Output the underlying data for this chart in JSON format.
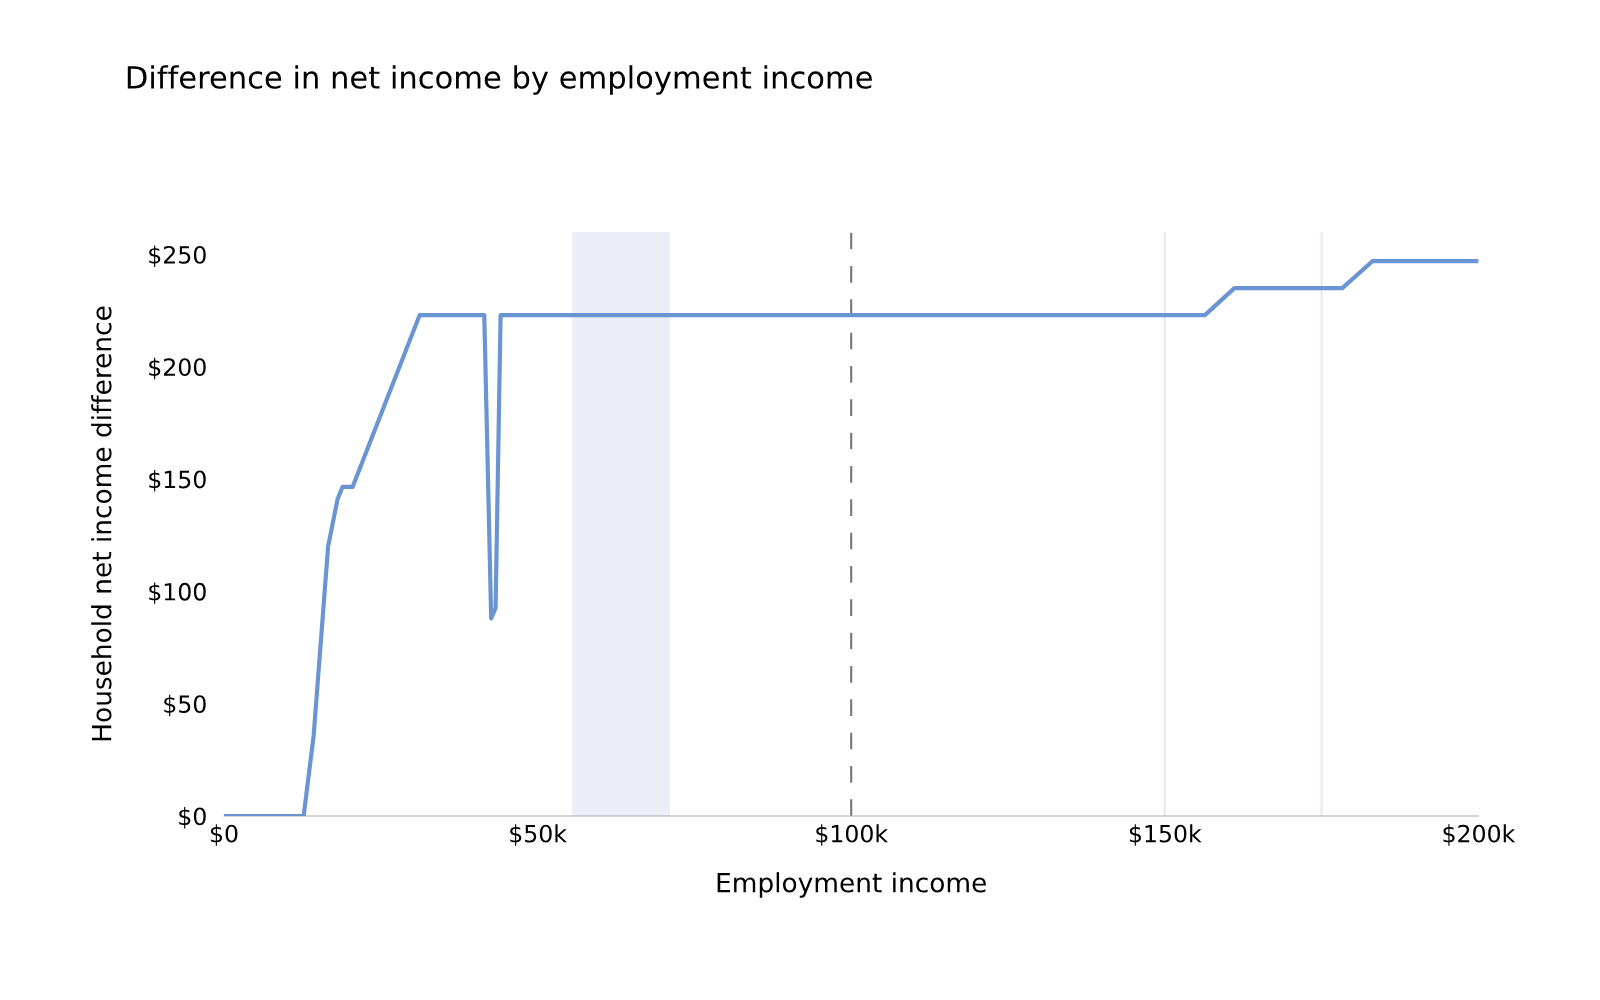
{
  "chart_data": {
    "type": "line",
    "title": "Difference in net income by employment income",
    "xlabel": "Employment income",
    "ylabel": "Household net income difference",
    "x": [
      0,
      12700,
      14300,
      16600,
      18100,
      18900,
      20500,
      31200,
      41500,
      42600,
      43300,
      44100,
      156400,
      161100,
      178300,
      183100,
      200000
    ],
    "series": [
      {
        "color": "#6a95d2",
        "values": [
          0,
          0,
          36,
          120,
          141,
          146.5,
          146.5,
          223,
          223,
          88,
          92.5,
          223,
          223,
          235,
          235,
          247,
          247
        ]
      }
    ],
    "xlim": [
      0,
      200000
    ],
    "xticks": [
      {
        "value": 0,
        "label": "$0"
      },
      {
        "value": 50000,
        "label": "$50k"
      },
      {
        "value": 100000,
        "label": "$100k"
      },
      {
        "value": 150000,
        "label": "$150k"
      },
      {
        "value": 200000,
        "label": "$200k"
      }
    ],
    "ylim": [
      0,
      260
    ],
    "yticks": [
      {
        "value": 0,
        "label": "$0"
      },
      {
        "value": 50,
        "label": "$50"
      },
      {
        "value": 100,
        "label": "$100"
      },
      {
        "value": 150,
        "label": "$150"
      },
      {
        "value": 200,
        "label": "$200"
      },
      {
        "value": 250,
        "label": "$250"
      }
    ],
    "ref_lines": [
      {
        "axis": "x",
        "value": 100000,
        "color": "#777777",
        "line_style": "dashed"
      },
      {
        "axis": "x",
        "value": 150000,
        "color": "#e6e9f3",
        "line_style": "solid"
      },
      {
        "axis": "x",
        "value": 175000,
        "color": "#e6e9f3",
        "line_style": "solid"
      }
    ],
    "bands": [
      {
        "axis": "x",
        "from": 55500,
        "to": 71100,
        "color": "#ebeef6"
      }
    ],
    "grid": false,
    "legend": false
  }
}
